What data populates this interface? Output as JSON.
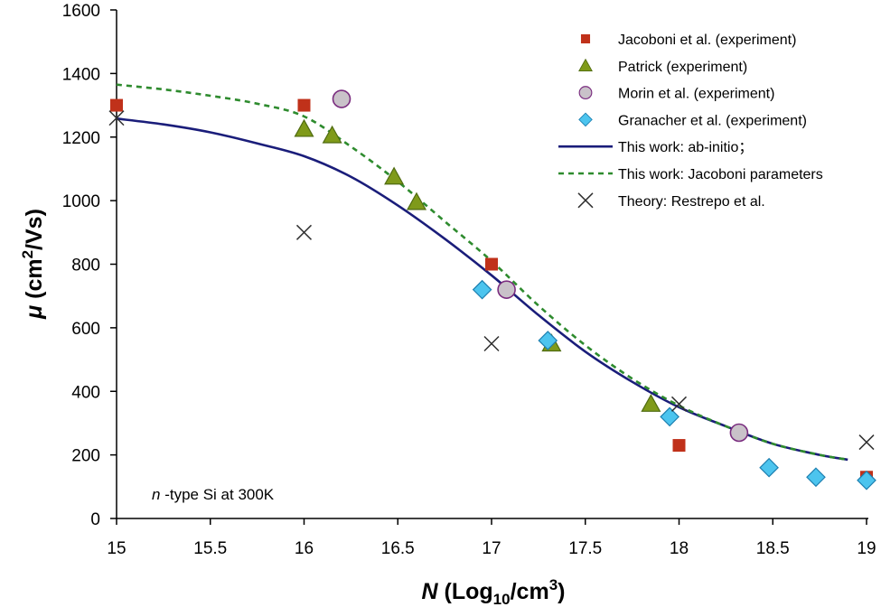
{
  "chart_data": {
    "type": "scatter",
    "xlim": [
      15,
      19
    ],
    "ylim": [
      0,
      1600
    ],
    "xticks": [
      "15",
      "15.5",
      "16",
      "16.5",
      "17",
      "17.5",
      "18",
      "18.5",
      "19"
    ],
    "yticks": [
      "0",
      "200",
      "400",
      "600",
      "800",
      "1000",
      "1200",
      "1400",
      "1600"
    ],
    "xlabel": {
      "sym": "N",
      "pre": " (Log",
      "sub": "10",
      "mid": "/cm",
      "sup": "3",
      "post": ")"
    },
    "ylabel": {
      "sym": "μ",
      "pre": " (cm",
      "sup": "2",
      "post": "/Vs)"
    },
    "annotation": {
      "italic": "n",
      "rest": " -type Si at 300K"
    },
    "grid": false,
    "legend_position": "top-right",
    "colors": {
      "jacoboni": "#c0311a",
      "patrick_fill": "#7f9a1a",
      "patrick_stroke": "#4f6b10",
      "morin_fill": "#c9c2c9",
      "morin_stroke": "#7a2c7f",
      "granacher_fill": "#4cc4ee",
      "granacher_stroke": "#1d7fb0",
      "abinitio": "#1a1d7a",
      "jacoboni_params": "#2e8b2e",
      "restrepo": "#303030"
    },
    "series": [
      {
        "key": "jacoboni",
        "name": "Jacoboni et al. (experiment)",
        "marker": "square",
        "x": [
          15,
          16,
          17,
          18,
          19
        ],
        "y": [
          1300,
          1300,
          800,
          230,
          130
        ]
      },
      {
        "key": "patrick",
        "name": "Patrick (experiment)",
        "marker": "triangle",
        "x": [
          16,
          16.15,
          16.48,
          16.6,
          17.32,
          17.85
        ],
        "y": [
          1225,
          1205,
          1075,
          995,
          550,
          360
        ]
      },
      {
        "key": "morin",
        "name": "Morin et al. (experiment)",
        "marker": "circle",
        "x": [
          16.2,
          17.08,
          18.32
        ],
        "y": [
          1320,
          720,
          270
        ]
      },
      {
        "key": "granacher",
        "name": "Granacher et al. (experiment)",
        "marker": "diamond",
        "x": [
          16.95,
          17.3,
          17.95,
          18.48,
          18.73,
          19
        ],
        "y": [
          720,
          560,
          320,
          160,
          130,
          120
        ]
      },
      {
        "key": "abinitio",
        "name": "This work: ab-initio；",
        "marker": "line",
        "x": [
          15,
          15.25,
          15.5,
          15.75,
          16,
          16.25,
          16.5,
          16.75,
          17,
          17.25,
          17.5,
          17.75,
          18,
          18.25,
          18.5,
          18.75,
          18.9
        ],
        "y": [
          1258,
          1240,
          1215,
          1180,
          1140,
          1075,
          985,
          880,
          765,
          640,
          525,
          430,
          350,
          290,
          235,
          200,
          185
        ]
      },
      {
        "key": "jacoboni_params",
        "name": "This work: Jacoboni parameters",
        "marker": "dash",
        "x": [
          15,
          15.25,
          15.5,
          15.75,
          16,
          16.25,
          16.5,
          16.75,
          17,
          17.25,
          17.5,
          17.75,
          18,
          18.25,
          18.5,
          18.75,
          18.9
        ],
        "y": [
          1365,
          1350,
          1330,
          1305,
          1265,
          1170,
          1060,
          935,
          810,
          670,
          545,
          440,
          355,
          290,
          235,
          200,
          185
        ]
      },
      {
        "key": "restrepo",
        "name": "Theory: Restrepo et al.",
        "marker": "x",
        "x": [
          15,
          16,
          17,
          18,
          19
        ],
        "y": [
          1260,
          900,
          550,
          360,
          240
        ]
      }
    ]
  }
}
